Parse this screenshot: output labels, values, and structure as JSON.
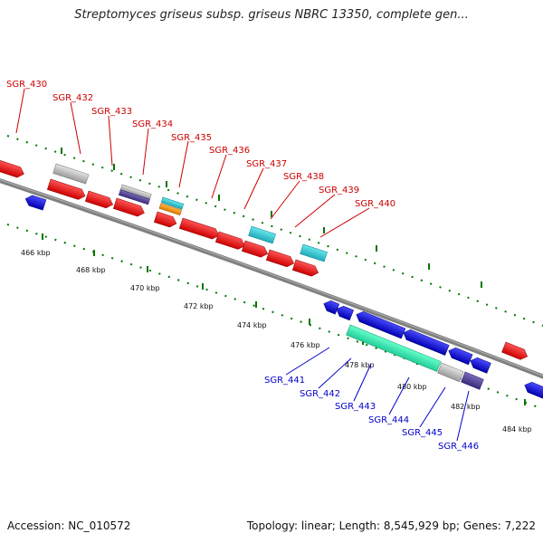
{
  "header": {
    "title": "Streptomyces griseus subsp. griseus NBRC 13350, complete gen..."
  },
  "footer": {
    "accession": "Accession: NC_010572",
    "summary": "Topology: linear; Length: 8,545,929 bp; Genes: 7,222"
  },
  "colors": {
    "forward_label": "#cc0000",
    "reverse_label": "#0000cc",
    "ruler": "#007700"
  },
  "tick_labels": [
    "466 kbp",
    "468 kbp",
    "470 kbp",
    "472 kbp",
    "474 kbp",
    "476 kbp",
    "478 kbp",
    "480 kbp",
    "482 kbp",
    "484 kbp"
  ],
  "genes_top": [
    "SGR_430",
    "SGR_432",
    "SGR_433",
    "SGR_434",
    "SGR_435",
    "SGR_436",
    "SGR_437",
    "SGR_438",
    "SGR_439",
    "SGR_440"
  ],
  "genes_bottom": [
    "SGR_441",
    "SGR_442",
    "SGR_443",
    "SGR_444",
    "SGR_445",
    "SGR_446"
  ]
}
